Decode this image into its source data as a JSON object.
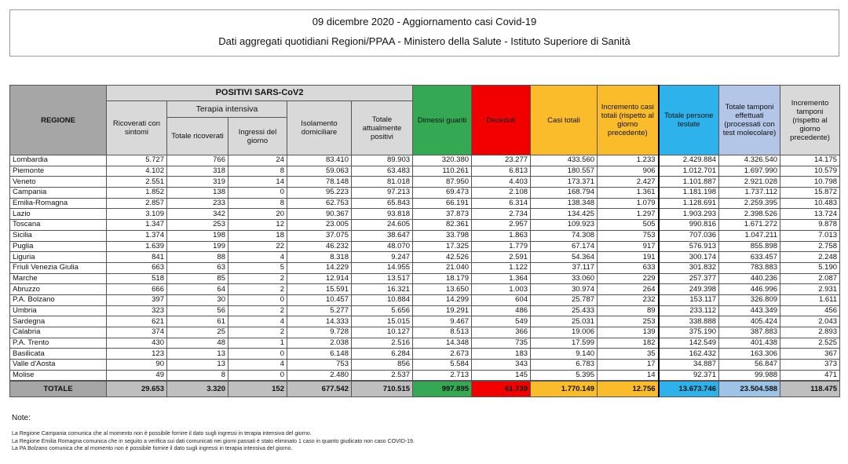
{
  "header": {
    "title": "09 dicembre 2020 - Aggiornamento casi Covid-19",
    "subtitle": "Dati aggregati quotidiani Regioni/PPAA - Ministero della Salute - Istituto Superiore di Sanità"
  },
  "table": {
    "headers": {
      "regione": "REGIONE",
      "positivi_group": "POSITIVI SARS-CoV2",
      "ricoverati": "Ricoverati con sintomi",
      "terapia_group": "Terapia intensiva",
      "ti_totale": "Totale ricoverati",
      "ti_ingressi": "Ingressi del giorno",
      "isolamento": "Isolamento domiciliare",
      "totale_positivi": "Totale attualmente positivi",
      "dimessi": "Dimessi guariti",
      "deceduti": "Deceduti",
      "casi_totali": "Casi totali",
      "incremento_casi": "Incremento casi totali (rispetto al giorno precedente)",
      "persone_testate": "Totale persone testate",
      "tamponi": "Totale tamponi effettuati (processati con test molecolare)",
      "incremento_tamponi": "Incremento tamponi (rispetto al giorno precedente)"
    },
    "rows": [
      [
        "Lombardia",
        "5.727",
        "766",
        "24",
        "83.410",
        "89.903",
        "320.380",
        "23.277",
        "433.560",
        "1.233",
        "2.429.884",
        "4.326.540",
        "14.175"
      ],
      [
        "Piemonte",
        "4.102",
        "318",
        "8",
        "59.063",
        "63.483",
        "110.261",
        "6.813",
        "180.557",
        "906",
        "1.012.701",
        "1.697.990",
        "10.579"
      ],
      [
        "Veneto",
        "2.551",
        "319",
        "14",
        "78.148",
        "81.018",
        "87.950",
        "4.403",
        "173.371",
        "2.427",
        "1.101.887",
        "2.921.028",
        "10.798"
      ],
      [
        "Campania",
        "1.852",
        "138",
        "0",
        "95.223",
        "97.213",
        "69.473",
        "2.108",
        "168.794",
        "1.361",
        "1.181.198",
        "1.737.112",
        "15.872"
      ],
      [
        "Emilia-Romagna",
        "2.857",
        "233",
        "8",
        "62.753",
        "65.843",
        "66.191",
        "6.314",
        "138.348",
        "1.079",
        "1.128.691",
        "2.259.395",
        "10.483"
      ],
      [
        "Lazio",
        "3.109",
        "342",
        "20",
        "90.367",
        "93.818",
        "37.873",
        "2.734",
        "134.425",
        "1.297",
        "1.903.293",
        "2.398.526",
        "13.724"
      ],
      [
        "Toscana",
        "1.347",
        "253",
        "12",
        "23.005",
        "24.605",
        "82.361",
        "2.957",
        "109.923",
        "505",
        "990.816",
        "1.671.272",
        "9.878"
      ],
      [
        "Sicilia",
        "1.374",
        "198",
        "18",
        "37.075",
        "38.647",
        "33.798",
        "1.863",
        "74.308",
        "753",
        "707.036",
        "1.047.211",
        "7.013"
      ],
      [
        "Puglia",
        "1.639",
        "199",
        "22",
        "46.232",
        "48.070",
        "17.325",
        "1.779",
        "67.174",
        "917",
        "576.913",
        "855.898",
        "2.758"
      ],
      [
        "Liguria",
        "841",
        "88",
        "4",
        "8.318",
        "9.247",
        "42.526",
        "2.591",
        "54.364",
        "191",
        "300.174",
        "633.457",
        "2.248"
      ],
      [
        "Friuli Venezia Giulia",
        "663",
        "63",
        "5",
        "14.229",
        "14.955",
        "21.040",
        "1.122",
        "37.117",
        "633",
        "301.832",
        "783.883",
        "5.190"
      ],
      [
        "Marche",
        "518",
        "85",
        "2",
        "12.914",
        "13.517",
        "18.179",
        "1.364",
        "33.060",
        "229",
        "257.377",
        "440.236",
        "2.087"
      ],
      [
        "Abruzzo",
        "666",
        "64",
        "2",
        "15.591",
        "16.321",
        "13.650",
        "1.003",
        "30.974",
        "264",
        "249.398",
        "446.996",
        "2.931"
      ],
      [
        "P.A. Bolzano",
        "397",
        "30",
        "0",
        "10.457",
        "10.884",
        "14.299",
        "604",
        "25.787",
        "232",
        "153.117",
        "326.809",
        "1.611"
      ],
      [
        "Umbria",
        "323",
        "56",
        "2",
        "5.277",
        "5.656",
        "19.291",
        "486",
        "25.433",
        "89",
        "233.112",
        "443.349",
        "456"
      ],
      [
        "Sardegna",
        "621",
        "61",
        "4",
        "14.333",
        "15.015",
        "9.467",
        "549",
        "25.031",
        "253",
        "338.888",
        "405.424",
        "2.043"
      ],
      [
        "Calabria",
        "374",
        "25",
        "2",
        "9.728",
        "10.127",
        "8.513",
        "366",
        "19.006",
        "139",
        "375.190",
        "387.883",
        "2.893"
      ],
      [
        "P.A. Trento",
        "430",
        "48",
        "1",
        "2.038",
        "2.516",
        "14.348",
        "735",
        "17.599",
        "182",
        "142.549",
        "401.438",
        "2.525"
      ],
      [
        "Basilicata",
        "123",
        "13",
        "0",
        "6.148",
        "6.284",
        "2.673",
        "183",
        "9.140",
        "35",
        "162.432",
        "163.306",
        "367"
      ],
      [
        "Valle d'Aosta",
        "90",
        "13",
        "4",
        "753",
        "856",
        "5.584",
        "343",
        "6.783",
        "17",
        "34.887",
        "56.847",
        "373"
      ],
      [
        "Molise",
        "49",
        "8",
        "0",
        "2.480",
        "2.537",
        "2.713",
        "145",
        "5.395",
        "14",
        "92.371",
        "99.988",
        "471"
      ]
    ],
    "totale": [
      "TOTALE",
      "29.653",
      "3.320",
      "152",
      "677.542",
      "710.515",
      "997.895",
      "61.739",
      "1.770.149",
      "12.756",
      "13.673.746",
      "23.504.588",
      "118.475"
    ]
  },
  "notes": {
    "title": "Note:",
    "lines": [
      "La Regione Campania comunica che al momento non è possibile fornire il dato sugli ingressi in terapia intensiva del giorno.",
      "La Regione Emilia Romagna comunica che in seguito a verifica sui dati comunicati nei giorni passati è stato eliminato 1 caso in quanto giudicato non caso COVID-19.",
      "La PA Bolzano comunica che al momento non è possibile fornire il dato sugli ingressi in terapia intensiva del giorno."
    ]
  },
  "colors": {
    "dimessi": "#35a853",
    "deceduti": "#f20000",
    "casi": "#fbbc2c",
    "persone_testate": "#2db2ec",
    "tamponi": "#b3c6e7",
    "header_gray": "#d9d9d9"
  }
}
